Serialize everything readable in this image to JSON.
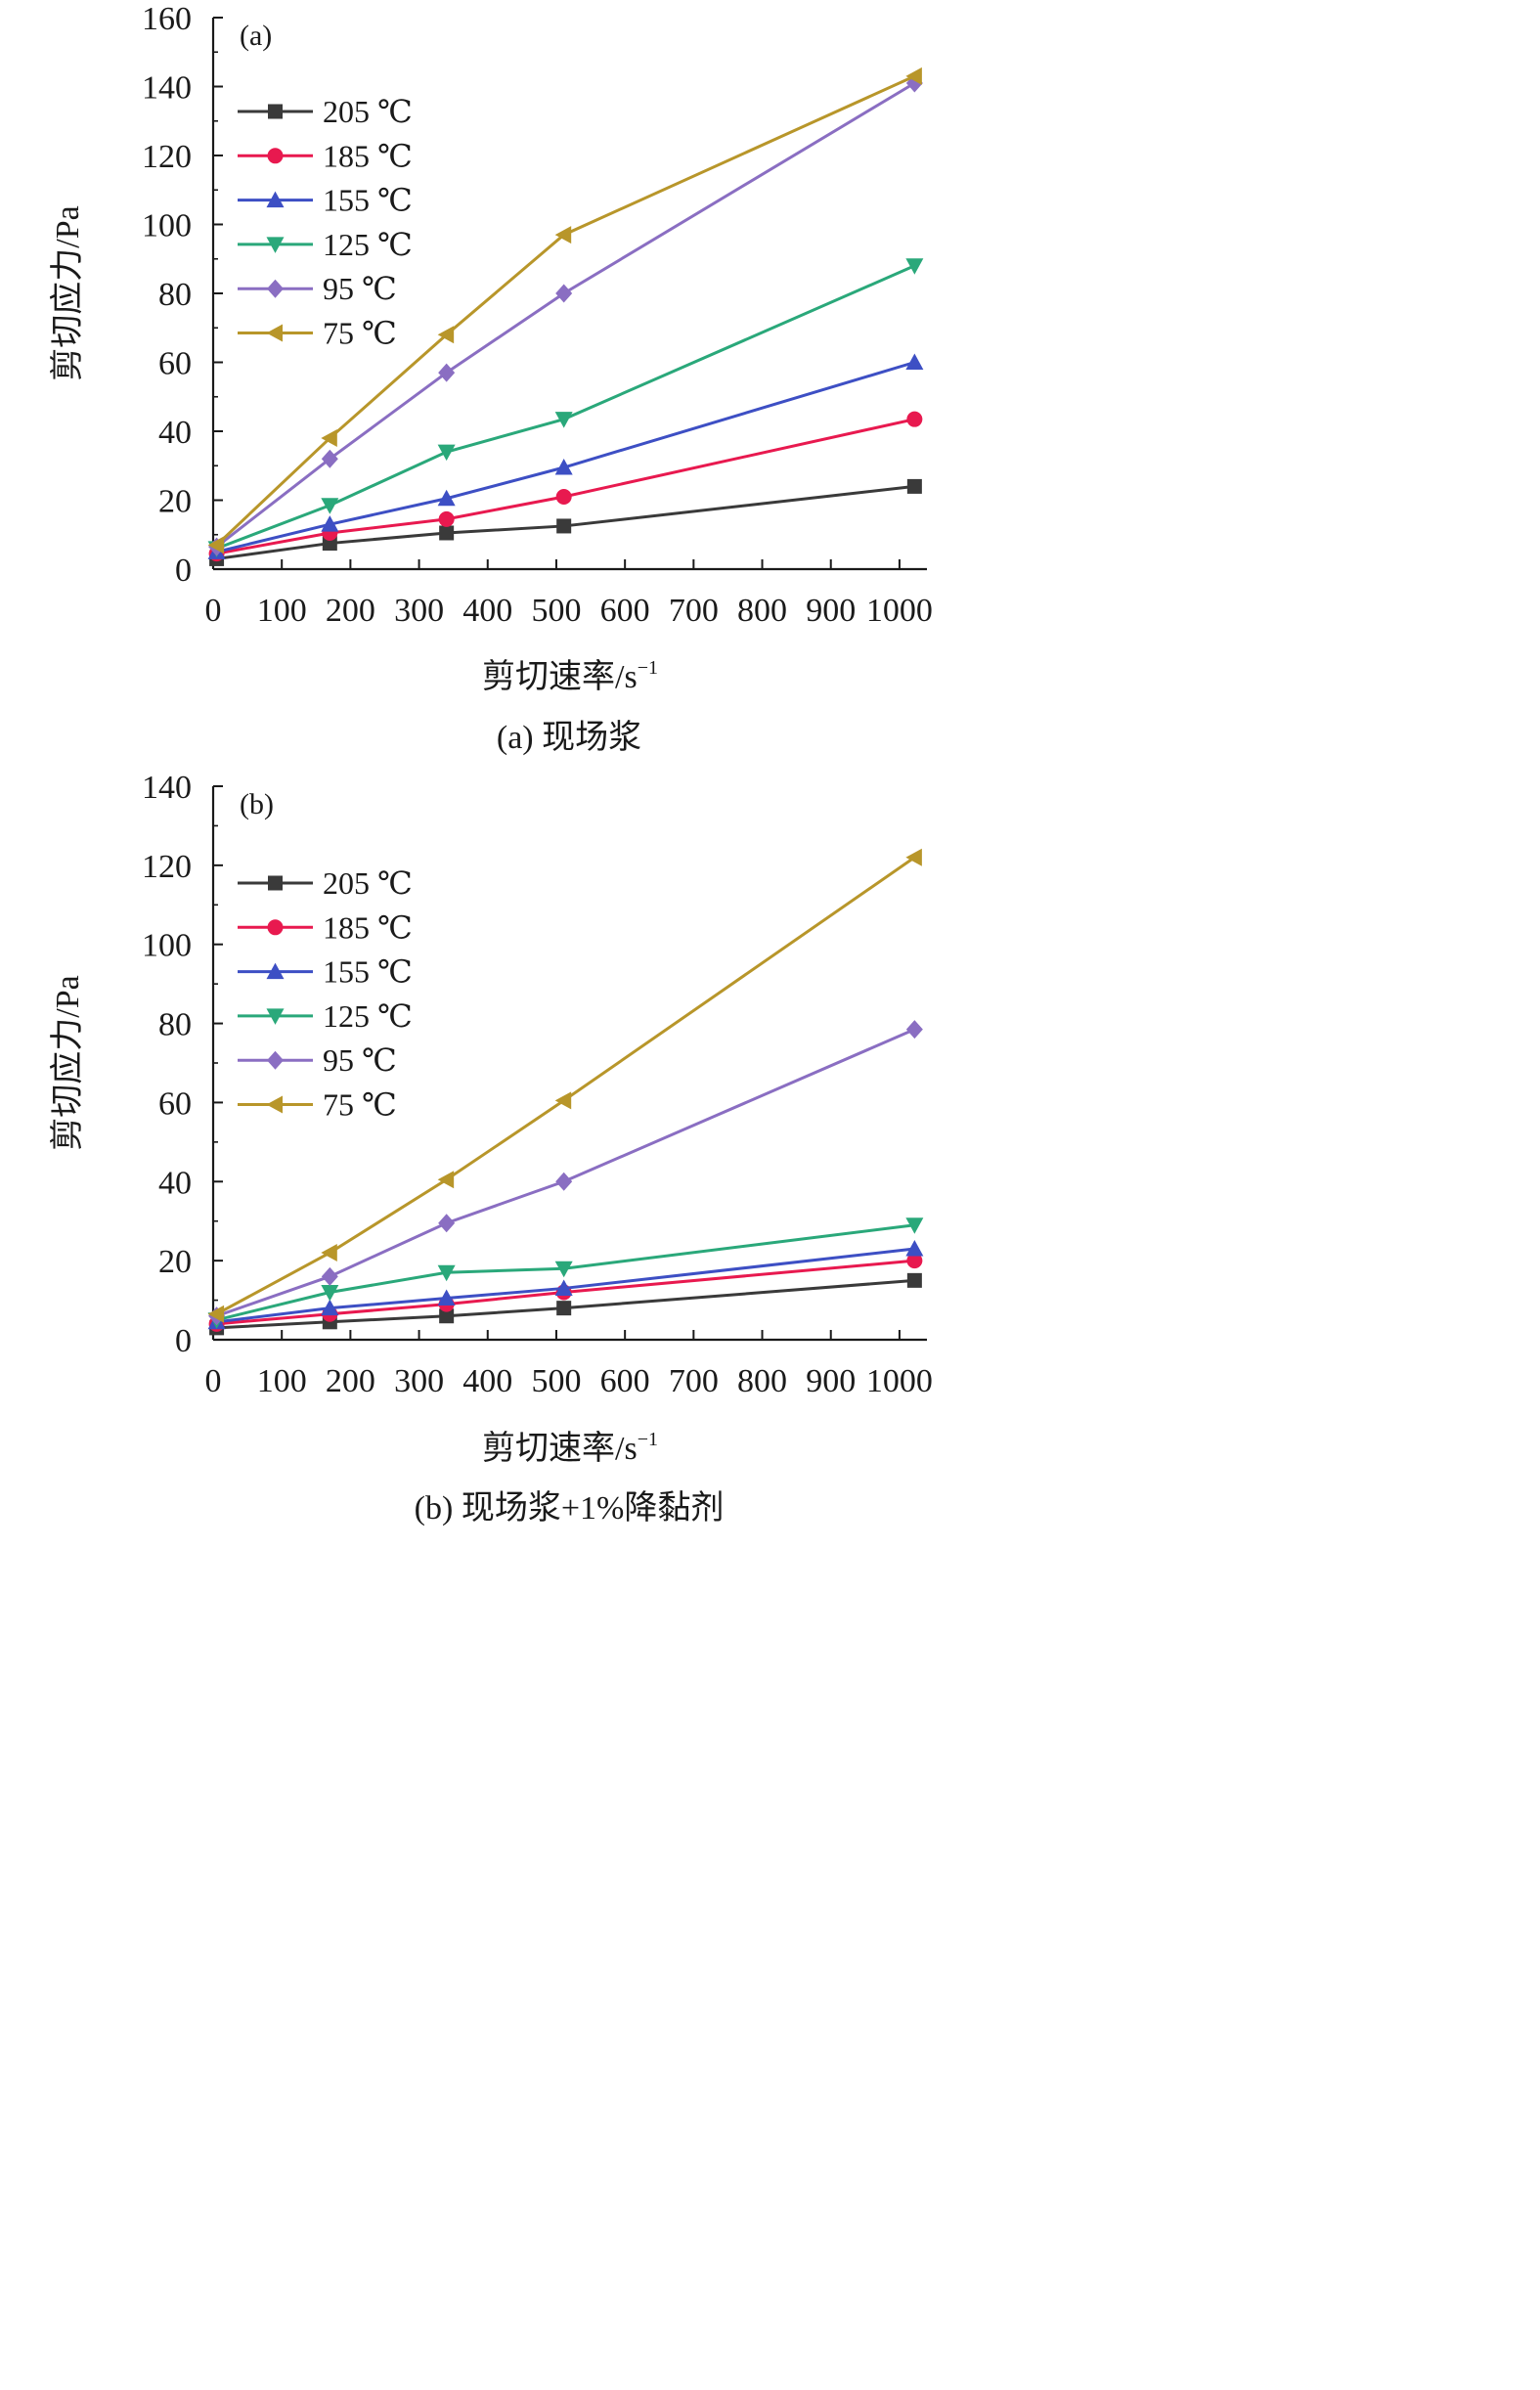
{
  "chart_data": [
    {
      "type": "line",
      "panel_label": "(a)",
      "caption": "(a) 现场浆",
      "xlabel": "剪切速率/s",
      "xlabel_sup": "−1",
      "ylabel": "剪切应力/Pa",
      "xlim": [
        0,
        1040
      ],
      "ylim": [
        0,
        160
      ],
      "xticks": [
        0,
        100,
        200,
        300,
        400,
        500,
        600,
        700,
        800,
        900,
        1000
      ],
      "yticks": [
        0,
        20,
        40,
        60,
        80,
        100,
        120,
        140,
        160
      ],
      "legend_position": "top-left",
      "grid": false,
      "x": [
        5.1,
        170,
        340,
        511,
        1022
      ],
      "series": [
        {
          "name": "205 ℃",
          "color": "#3a3a3a",
          "marker": "square",
          "values": [
            3,
            7.5,
            10.5,
            12.5,
            24
          ]
        },
        {
          "name": "185 ℃",
          "color": "#e8194f",
          "marker": "circle",
          "values": [
            4.5,
            10.5,
            14.5,
            21,
            43.5
          ]
        },
        {
          "name": "155 ℃",
          "color": "#3d4fc4",
          "marker": "triangle-up",
          "values": [
            5,
            13,
            20.5,
            29.5,
            60
          ]
        },
        {
          "name": "125 ℃",
          "color": "#2aa87a",
          "marker": "triangle-down",
          "values": [
            6,
            18.5,
            34,
            43.5,
            88
          ]
        },
        {
          "name": "95 ℃",
          "color": "#8a6ec2",
          "marker": "diamond",
          "values": [
            6.5,
            32,
            57,
            80,
            141
          ]
        },
        {
          "name": "75 ℃",
          "color": "#b8962a",
          "marker": "triangle-left",
          "values": [
            7,
            38,
            68,
            97,
            143
          ]
        }
      ]
    },
    {
      "type": "line",
      "panel_label": "(b)",
      "caption": "(b) 现场浆+1%降黏剂",
      "xlabel": "剪切速率/s",
      "xlabel_sup": "−1",
      "ylabel": "剪切应力/Pa",
      "xlim": [
        0,
        1040
      ],
      "ylim": [
        0,
        140
      ],
      "xticks": [
        0,
        100,
        200,
        300,
        400,
        500,
        600,
        700,
        800,
        900,
        1000
      ],
      "yticks": [
        0,
        20,
        40,
        60,
        80,
        100,
        120,
        140
      ],
      "legend_position": "top-left",
      "grid": false,
      "x": [
        5.1,
        170,
        340,
        511,
        1022
      ],
      "series": [
        {
          "name": "205 ℃",
          "color": "#3a3a3a",
          "marker": "square",
          "values": [
            3,
            4.5,
            6,
            8,
            15
          ]
        },
        {
          "name": "185 ℃",
          "color": "#e8194f",
          "marker": "circle",
          "values": [
            4,
            6.5,
            9,
            12,
            20
          ]
        },
        {
          "name": "155 ℃",
          "color": "#3d4fc4",
          "marker": "triangle-up",
          "values": [
            4.5,
            8,
            10.5,
            13,
            23
          ]
        },
        {
          "name": "125 ℃",
          "color": "#2aa87a",
          "marker": "triangle-down",
          "values": [
            5,
            12,
            17,
            18,
            29
          ]
        },
        {
          "name": "95 ℃",
          "color": "#8a6ec2",
          "marker": "diamond",
          "values": [
            6,
            16,
            29.5,
            40,
            78.5
          ]
        },
        {
          "name": "75 ℃",
          "color": "#b8962a",
          "marker": "triangle-left",
          "values": [
            6.5,
            22,
            40.5,
            60.5,
            122
          ]
        }
      ]
    }
  ]
}
